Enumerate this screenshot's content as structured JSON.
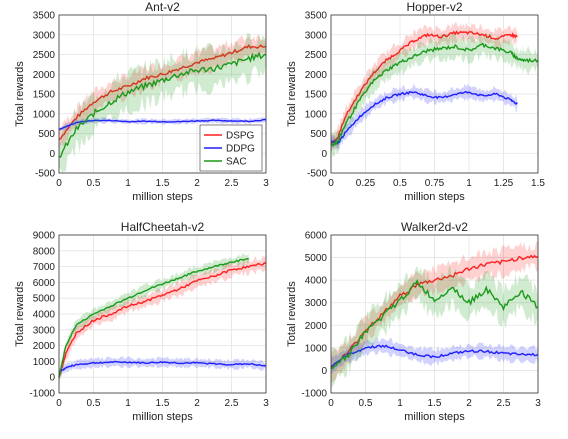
{
  "colors": {
    "DSPG": "#ff1f1f",
    "DDPG": "#1f1fff",
    "SAC": "#1a9a1a"
  },
  "legend": {
    "placement": "inside-lower-right",
    "chart_index": 0
  },
  "chart_data": [
    {
      "type": "line",
      "title": "Ant-v2",
      "xlabel": "million steps",
      "ylabel": "Total rewards",
      "xlim": [
        0,
        3
      ],
      "ylim": [
        -500,
        3500
      ],
      "xticks": [
        "0",
        "0.5",
        "1",
        "1.5",
        "2",
        "2.5",
        "3"
      ],
      "yticks": [
        "-500",
        "0",
        "500",
        "1000",
        "1500",
        "2000",
        "2500",
        "3000",
        "3500"
      ],
      "grid": true,
      "x": [
        0,
        0.25,
        0.5,
        0.75,
        1.0,
        1.25,
        1.5,
        1.75,
        2.0,
        2.25,
        2.5,
        2.75,
        3.0
      ],
      "series": [
        {
          "name": "DSPG",
          "values": [
            350,
            900,
            1300,
            1550,
            1700,
            1900,
            2000,
            2150,
            2300,
            2400,
            2550,
            2700,
            2700
          ],
          "band": 250
        },
        {
          "name": "DDPG",
          "values": [
            600,
            780,
            830,
            830,
            800,
            810,
            800,
            800,
            820,
            830,
            820,
            810,
            850
          ],
          "band": 60
        },
        {
          "name": "SAC",
          "values": [
            -100,
            600,
            1000,
            1300,
            1550,
            1700,
            1850,
            2000,
            2100,
            2150,
            2250,
            2400,
            2500
          ],
          "band": 450
        }
      ]
    },
    {
      "type": "line",
      "title": "Hopper-v2",
      "xlabel": "million steps",
      "ylabel": "Total rewards",
      "xlim": [
        0,
        1.5
      ],
      "ylim": [
        -500,
        3500
      ],
      "xticks": [
        "0",
        "0.25",
        "0.5",
        "0.75",
        "1",
        "1.25",
        "1.5"
      ],
      "yticks": [
        "-500",
        "0",
        "500",
        "1000",
        "1500",
        "2000",
        "2500",
        "3000",
        "3500"
      ],
      "grid": true,
      "x": [
        0,
        0.05,
        0.1,
        0.2,
        0.3,
        0.4,
        0.5,
        0.6,
        0.7,
        0.8,
        0.9,
        1.0,
        1.1,
        1.2,
        1.3,
        1.35,
        1.4,
        1.5
      ],
      "series": [
        {
          "name": "DSPG",
          "values": [
            250,
            400,
            900,
            1500,
            2000,
            2350,
            2600,
            2850,
            3000,
            2950,
            3050,
            3050,
            3000,
            2900,
            3000,
            2950,
            null,
            null
          ],
          "band": 200
        },
        {
          "name": "DDPG",
          "values": [
            300,
            250,
            500,
            900,
            1200,
            1400,
            1500,
            1550,
            1450,
            1400,
            1500,
            1550,
            1450,
            1500,
            1350,
            1250,
            null,
            null
          ],
          "band": 150
        },
        {
          "name": "SAC",
          "values": [
            200,
            300,
            700,
            1300,
            1800,
            2100,
            2300,
            2450,
            2600,
            2650,
            2700,
            2600,
            2750,
            2650,
            2550,
            2400,
            2350,
            2350
          ],
          "band": 250
        }
      ]
    },
    {
      "type": "line",
      "title": "HalfCheetah-v2",
      "xlabel": "million steps",
      "ylabel": "Total rewards",
      "xlim": [
        0,
        3
      ],
      "ylim": [
        -1000,
        9000
      ],
      "xticks": [
        "0",
        "0.5",
        "1",
        "1.5",
        "2",
        "2.5",
        "3"
      ],
      "yticks": [
        "-1000",
        "0",
        "1000",
        "2000",
        "3000",
        "4000",
        "5000",
        "6000",
        "7000",
        "8000",
        "9000"
      ],
      "grid": true,
      "x": [
        0,
        0.1,
        0.25,
        0.5,
        0.75,
        1.0,
        1.25,
        1.5,
        1.75,
        2.0,
        2.25,
        2.5,
        2.75,
        3.0
      ],
      "series": [
        {
          "name": "DSPG",
          "values": [
            0,
            1500,
            2800,
            3600,
            4000,
            4500,
            4800,
            5200,
            5600,
            6100,
            6400,
            6800,
            7000,
            7200
          ],
          "band": 400
        },
        {
          "name": "DDPG",
          "values": [
            300,
            600,
            800,
            900,
            950,
            950,
            900,
            950,
            900,
            900,
            850,
            800,
            850,
            700
          ],
          "band": 250
        },
        {
          "name": "SAC",
          "values": [
            0,
            2000,
            3300,
            4000,
            4500,
            5000,
            5500,
            5900,
            6300,
            6700,
            7000,
            7300,
            7500,
            null
          ],
          "band": 300
        }
      ]
    },
    {
      "type": "line",
      "title": "Walker2d-v2",
      "xlabel": "million steps",
      "ylabel": "Total rewards",
      "xlim": [
        0,
        3
      ],
      "ylim": [
        -1000,
        6000
      ],
      "xticks": [
        "0",
        "0.5",
        "1",
        "1.5",
        "2",
        "2.5",
        "3"
      ],
      "yticks": [
        "-1000",
        "0",
        "1000",
        "2000",
        "3000",
        "4000",
        "5000",
        "6000"
      ],
      "grid": true,
      "x": [
        0,
        0.25,
        0.5,
        0.75,
        1.0,
        1.25,
        1.5,
        1.75,
        2.0,
        2.25,
        2.5,
        2.75,
        3.0
      ],
      "series": [
        {
          "name": "DSPG",
          "values": [
            100,
            800,
            1800,
            2500,
            3300,
            3800,
            4000,
            4200,
            4500,
            4700,
            4800,
            5000,
            5050
          ],
          "band": 500
        },
        {
          "name": "DDPG",
          "values": [
            200,
            700,
            1000,
            1100,
            900,
            700,
            600,
            750,
            850,
            850,
            750,
            700,
            700
          ],
          "band": 300
        },
        {
          "name": "SAC",
          "values": [
            100,
            700,
            1700,
            2400,
            3100,
            3900,
            3100,
            3700,
            3000,
            3600,
            2800,
            3500,
            2800
          ],
          "band": 700
        }
      ]
    }
  ]
}
